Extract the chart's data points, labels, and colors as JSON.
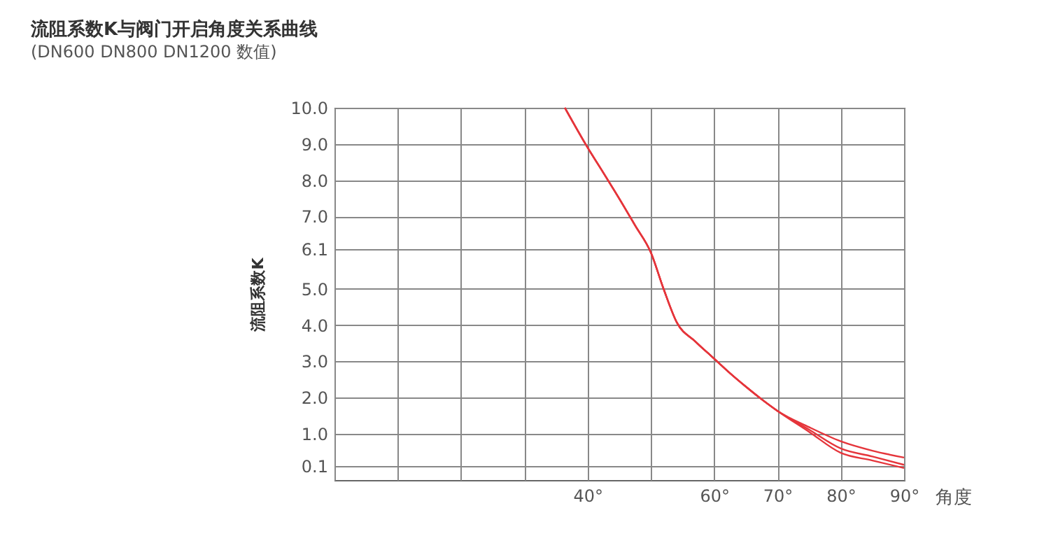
{
  "chart_data": {
    "type": "line",
    "title": "流阻系数K与阀门开启角度关系曲线",
    "subtitle": "(DN600  DN800  DN1200 数值)",
    "xlabel": "角度",
    "ylabel": "流阻系数K",
    "x": [
      36.4,
      40,
      42.5,
      45,
      47.5,
      50,
      52,
      54.1,
      57,
      60,
      62.5,
      65,
      67.5,
      70,
      75,
      80,
      85,
      90
    ],
    "series": [
      {
        "color": "#e5353b",
        "values": [
          10,
          8.9,
          8.2,
          7.49,
          6.75,
          6.0,
          5.0,
          4.07,
          3.55,
          3.07,
          2.67,
          2.3,
          1.95,
          1.63,
          1.18,
          0.79,
          0.53,
          0.34
        ]
      },
      {
        "color": "#e5353b",
        "values": [
          10,
          8.9,
          8.2,
          7.49,
          6.75,
          6.0,
          5.0,
          4.07,
          3.55,
          3.07,
          2.67,
          2.3,
          1.95,
          1.63,
          1.11,
          0.59,
          0.37,
          0.14
        ]
      },
      {
        "color": "#e5353b",
        "values": [
          10,
          8.9,
          8.2,
          7.49,
          6.75,
          6.0,
          5.0,
          4.07,
          3.55,
          3.07,
          2.67,
          2.3,
          1.95,
          1.63,
          1.05,
          0.47,
          0.26,
          0.05
        ]
      }
    ],
    "xlim": [
      0,
      90
    ],
    "ylim": [
      -0.28,
      10
    ],
    "xticks": [
      {
        "value": 0,
        "label": null
      },
      {
        "value": 10,
        "label": null
      },
      {
        "value": 20,
        "label": null
      },
      {
        "value": 30,
        "label": null
      },
      {
        "value": 40,
        "label": "40°"
      },
      {
        "value": 50,
        "label": null
      },
      {
        "value": 60,
        "label": "60°"
      },
      {
        "value": 70,
        "label": "70°"
      },
      {
        "value": 80,
        "label": "80°"
      },
      {
        "value": 90,
        "label": "90°"
      }
    ],
    "yticks": [
      {
        "value": 0.1,
        "label": "0.1"
      },
      {
        "value": 1,
        "label": "1.0"
      },
      {
        "value": 2,
        "label": "2.0"
      },
      {
        "value": 3,
        "label": "3.0"
      },
      {
        "value": 4,
        "label": "4.0"
      },
      {
        "value": 5,
        "label": "5.0"
      },
      6.1,
      {
        "value": 7,
        "label": "7.0"
      },
      {
        "value": 8,
        "label": "8.0"
      },
      {
        "value": 9,
        "label": "9.0"
      },
      {
        "value": 10,
        "label": "10.0"
      }
    ],
    "grid": true,
    "legend": false,
    "marker": "none",
    "line_style": "solid"
  }
}
